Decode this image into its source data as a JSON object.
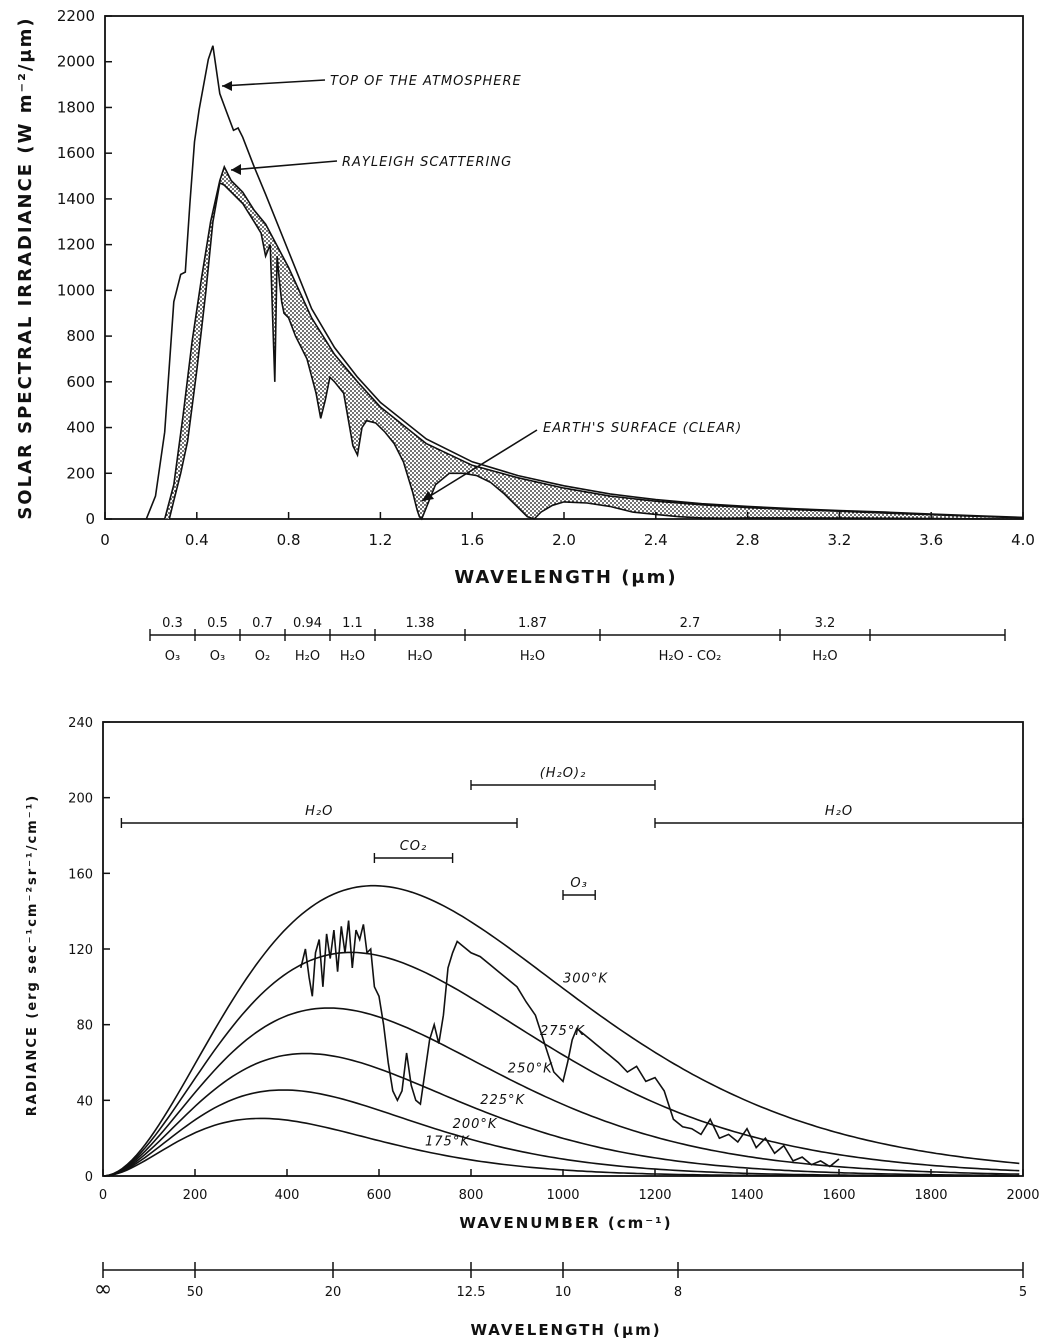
{
  "chart_data": [
    {
      "type": "area",
      "xlabel": "WAVELENGTH (μm)",
      "ylabel": "SOLAR SPECTRAL IRRADIANCE (W m⁻²/μm)",
      "xlim": [
        0,
        4.0
      ],
      "ylim": [
        0,
        2200
      ],
      "x_ticks": [
        "0",
        "0.4",
        "0.8",
        "1.2",
        "1.6",
        "2.0",
        "2.4",
        "2.8",
        "3.2",
        "3.6",
        "4.0"
      ],
      "y_ticks": [
        "0",
        "200",
        "400",
        "600",
        "800",
        "1000",
        "1200",
        "1400",
        "1600",
        "1800",
        "2000",
        "2200"
      ],
      "grid": false,
      "series": [
        {
          "name": "TOP OF THE ATMOSPHERE",
          "x": [
            0.18,
            0.22,
            0.26,
            0.3,
            0.33,
            0.35,
            0.37,
            0.39,
            0.41,
            0.43,
            0.45,
            0.47,
            0.48,
            0.5,
            0.53,
            0.56,
            0.58,
            0.6,
            0.65,
            0.7,
            0.8,
            0.9,
            1.0,
            1.1,
            1.2,
            1.4,
            1.6,
            1.8,
            2.0,
            2.2,
            2.4,
            2.6,
            2.8,
            3.0,
            3.2,
            3.4,
            3.6,
            3.8,
            4.0
          ],
          "y": [
            0,
            100,
            380,
            950,
            1070,
            1080,
            1380,
            1650,
            1790,
            1900,
            2010,
            2070,
            2000,
            1860,
            1780,
            1700,
            1710,
            1670,
            1540,
            1420,
            1170,
            920,
            750,
            620,
            510,
            350,
            250,
            190,
            145,
            110,
            85,
            67,
            55,
            45,
            37,
            30,
            22,
            14,
            7
          ]
        },
        {
          "name": "RAYLEIGH SCATTERING",
          "x": [
            0.26,
            0.3,
            0.34,
            0.38,
            0.42,
            0.46,
            0.5,
            0.52,
            0.55,
            0.6,
            0.65,
            0.7,
            0.8,
            0.9,
            1.0,
            1.1,
            1.2,
            1.4,
            1.6,
            1.8,
            2.0,
            2.2,
            2.4,
            2.6,
            2.8,
            3.0,
            3.2,
            3.4,
            3.6,
            3.8,
            4.0
          ],
          "y": [
            0,
            150,
            450,
            780,
            1050,
            1300,
            1480,
            1540,
            1480,
            1430,
            1350,
            1290,
            1100,
            880,
            720,
            600,
            490,
            330,
            235,
            180,
            135,
            100,
            78,
            62,
            50,
            41,
            34,
            26,
            19,
            12,
            5
          ]
        },
        {
          "name": "EARTH'S SURFACE (CLEAR)",
          "x": [
            0.28,
            0.3,
            0.33,
            0.36,
            0.4,
            0.44,
            0.47,
            0.5,
            0.52,
            0.55,
            0.6,
            0.65,
            0.68,
            0.7,
            0.72,
            0.74,
            0.75,
            0.76,
            0.77,
            0.78,
            0.8,
            0.83,
            0.85,
            0.88,
            0.92,
            0.94,
            0.96,
            0.98,
            1.0,
            1.04,
            1.08,
            1.1,
            1.12,
            1.14,
            1.18,
            1.22,
            1.26,
            1.3,
            1.34,
            1.36,
            1.37,
            1.38,
            1.4,
            1.44,
            1.5,
            1.56,
            1.62,
            1.68,
            1.74,
            1.8,
            1.84,
            1.87,
            1.9,
            1.95,
            2.0,
            2.1,
            2.2,
            2.3,
            2.4,
            2.5,
            2.6,
            2.7,
            2.8,
            3.0,
            3.2,
            3.4,
            3.6,
            3.8,
            4.0
          ],
          "y": [
            0,
            80,
            200,
            340,
            650,
            1000,
            1300,
            1470,
            1460,
            1430,
            1380,
            1300,
            1250,
            1150,
            1200,
            600,
            1150,
            1040,
            950,
            900,
            880,
            800,
            760,
            700,
            550,
            440,
            520,
            620,
            600,
            550,
            320,
            280,
            400,
            430,
            420,
            380,
            330,
            250,
            120,
            40,
            10,
            0,
            50,
            150,
            200,
            200,
            190,
            160,
            110,
            50,
            10,
            0,
            30,
            60,
            75,
            70,
            55,
            30,
            20,
            10,
            5,
            3,
            5,
            5,
            4,
            3,
            2,
            1,
            0
          ]
        }
      ],
      "annotations": [
        "TOP OF THE ATMOSPHERE",
        "RAYLEIGH SCATTERING",
        "EARTH'S SURFACE (CLEAR)"
      ],
      "absorption_scale": {
        "positions": [
          "0.3",
          "0.5",
          "0.7",
          "0.94",
          "1.1",
          "1.38",
          "1.87",
          "2.7",
          "3.2"
        ],
        "absorbers": [
          "O₃",
          "O₃",
          "O₂",
          "H₂O",
          "H₂O",
          "H₂O",
          "H₂O",
          "H₂O - CO₂",
          "H₂O"
        ],
        "dividers": [
          0.2,
          0.4,
          0.6,
          0.8,
          1.0,
          1.2,
          1.6,
          2.2,
          3.0,
          3.4,
          4.0
        ]
      }
    },
    {
      "type": "line",
      "xlabel": "WAVENUMBER (cm⁻¹)",
      "ylabel": "RADIANCE (erg sec⁻¹cm⁻²sr⁻¹/cm⁻¹)",
      "xlim": [
        0,
        2000
      ],
      "ylim": [
        0,
        240
      ],
      "x_ticks": [
        "0",
        "200",
        "400",
        "600",
        "800",
        "1000",
        "1200",
        "1400",
        "1600",
        "1800",
        "2000"
      ],
      "y_ticks": [
        "0",
        "40",
        "80",
        "120",
        "160",
        "200",
        "240"
      ],
      "grid": false,
      "blackbody_temperatures_K": [
        175,
        200,
        225,
        250,
        275,
        300
      ],
      "blackbody_labels": [
        "175°K",
        "200°K",
        "225°K",
        "250°K",
        "275°K",
        "300°K"
      ],
      "series": [
        {
          "name": "",
          "x": [
            430,
            440,
            448,
            455,
            462,
            470,
            478,
            486,
            494,
            502,
            510,
            518,
            526,
            534,
            542,
            550,
            558,
            566,
            574,
            582,
            590,
            600,
            610,
            620,
            630,
            640,
            650,
            660,
            670,
            680,
            690,
            700,
            710,
            720,
            730,
            740,
            750,
            760,
            770,
            780,
            790,
            800,
            820,
            840,
            860,
            880,
            900,
            920,
            940,
            960,
            980,
            1000,
            1010,
            1020,
            1030,
            1040,
            1050,
            1060,
            1070,
            1080,
            1090,
            1100,
            1120,
            1140,
            1160,
            1180,
            1200,
            1220,
            1240,
            1250,
            1260,
            1280,
            1300,
            1320,
            1340,
            1360,
            1380,
            1400,
            1420,
            1440,
            1460,
            1480,
            1500,
            1520,
            1540,
            1560,
            1580,
            1600
          ],
          "y": [
            110,
            120,
            105,
            95,
            118,
            125,
            100,
            128,
            115,
            130,
            108,
            132,
            118,
            135,
            110,
            130,
            125,
            133,
            118,
            120,
            100,
            95,
            80,
            60,
            45,
            40,
            45,
            65,
            48,
            40,
            38,
            55,
            72,
            80,
            70,
            85,
            110,
            118,
            124,
            122,
            120,
            118,
            116,
            112,
            108,
            104,
            100,
            92,
            85,
            70,
            55,
            50,
            60,
            72,
            78,
            76,
            74,
            72,
            70,
            68,
            66,
            64,
            60,
            55,
            58,
            50,
            52,
            45,
            30,
            28,
            26,
            25,
            22,
            30,
            20,
            22,
            18,
            25,
            15,
            20,
            12,
            16,
            8,
            10,
            6,
            8,
            5,
            9
          ]
        }
      ],
      "band_labels": [
        {
          "label": "H₂O",
          "from": 40,
          "to": 900
        },
        {
          "label": "(H₂O)₂",
          "from": 800,
          "to": 1200
        },
        {
          "label": "H₂O",
          "from": 1200,
          "to": 2000
        },
        {
          "label": "CO₂",
          "from": 590,
          "to": 760
        },
        {
          "label": "O₃",
          "from": 1000,
          "to": 1070
        }
      ],
      "secondary_axis": {
        "xlabel": "WAVELENGTH (μm)",
        "ticks": [
          "∞",
          "50",
          "20",
          "12.5",
          "10",
          "8",
          "5"
        ],
        "tick_values": [
          null,
          50,
          20,
          12.5,
          10,
          8,
          5
        ]
      }
    }
  ]
}
